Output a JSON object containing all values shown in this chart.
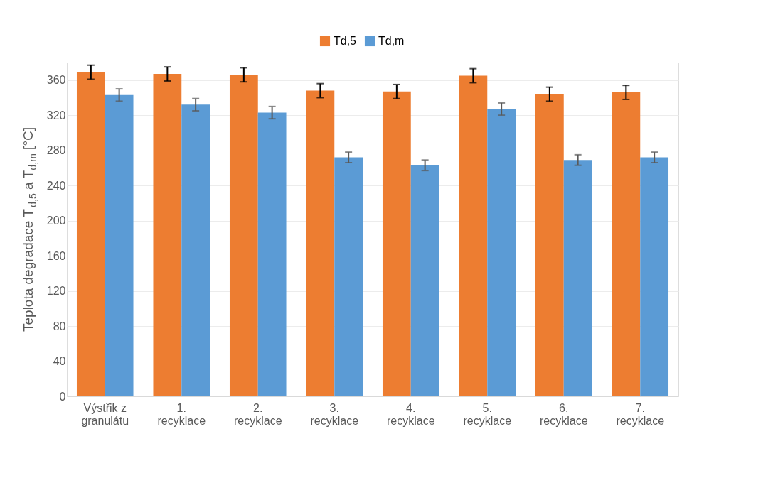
{
  "chart_data": {
    "type": "bar",
    "ylabel": "Teplota degradace T$_{d,5}$ a T$_{d,m}$ [°C]",
    "categories": [
      "Výstřik z granulátu",
      "1. recyklace",
      "2. recyklace",
      "3. recyklace",
      "4. recyklace",
      "5. recyklace",
      "6. recyklace",
      "7. recyklace"
    ],
    "series": [
      {
        "name": "Td,5",
        "color": "#ed7d31",
        "values": [
          369,
          367,
          366,
          348,
          347,
          365,
          344,
          346
        ],
        "errors": [
          8,
          8,
          8,
          8,
          8,
          8,
          8,
          8
        ]
      },
      {
        "name": "Td,m",
        "color": "#5b9bd5",
        "values": [
          343,
          332,
          323,
          272,
          263,
          327,
          269,
          272
        ],
        "errors": [
          7,
          7,
          7,
          6,
          6,
          7,
          6,
          6
        ]
      }
    ],
    "ylim": [
      0,
      380
    ],
    "yticks": [
      0,
      40,
      80,
      120,
      160,
      200,
      240,
      280,
      320,
      360
    ],
    "grid": "y",
    "legend": "top"
  }
}
